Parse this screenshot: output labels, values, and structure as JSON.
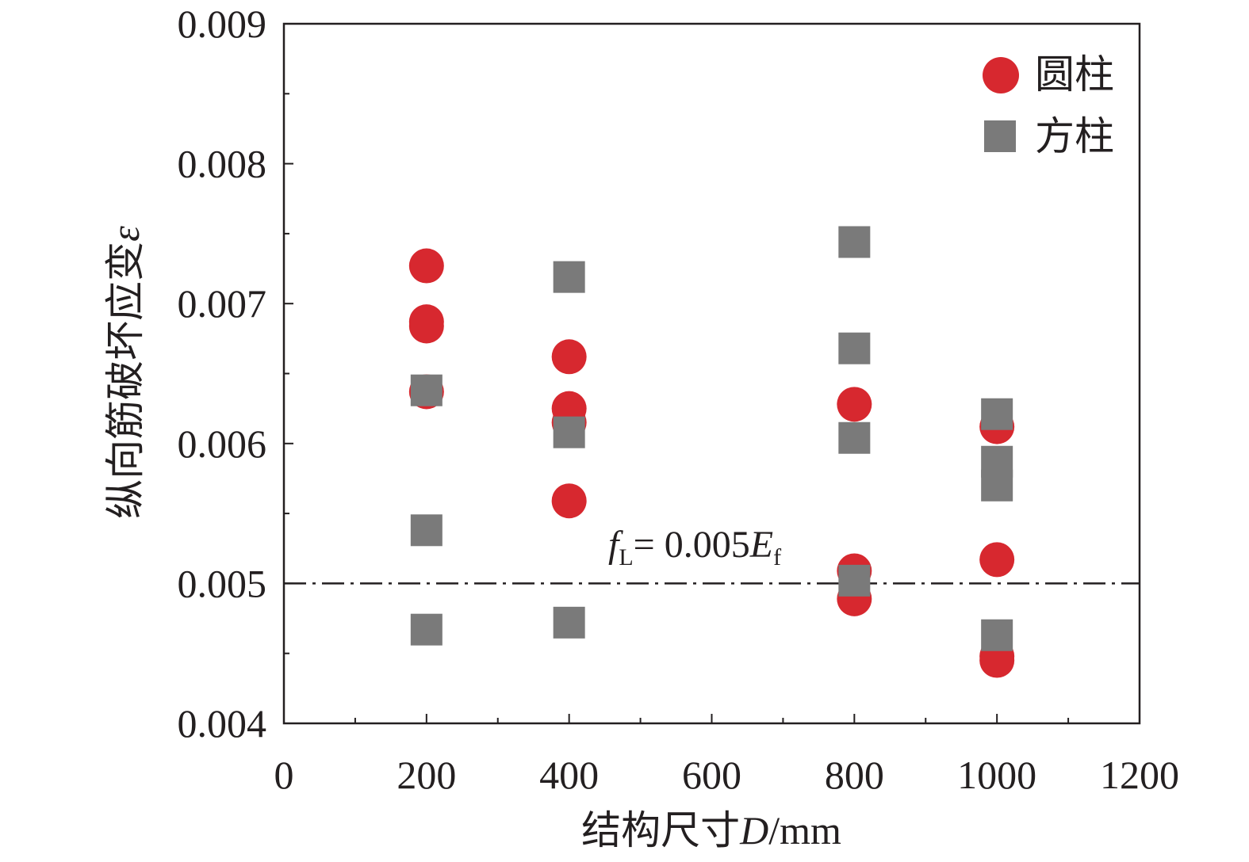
{
  "chart_data": {
    "type": "scatter",
    "xlabel": {
      "prefix": "结构尺寸",
      "var": "D",
      "suffix": "/mm"
    },
    "ylabel": {
      "text": "纵向筋破坏应变",
      "var": "ε"
    },
    "xlim": [
      0,
      1200
    ],
    "ylim": [
      0.004,
      0.009
    ],
    "x_ticks": [
      "0",
      "200",
      "400",
      "600",
      "800",
      "1000",
      "1200"
    ],
    "y_ticks": [
      "0.004",
      "0.005",
      "0.006",
      "0.007",
      "0.008",
      "0.009"
    ],
    "grid": false,
    "legend_position": "top-right",
    "series": [
      {
        "name": "圆柱",
        "marker": "circle",
        "color": "#d7282f",
        "points": [
          {
            "x": 200,
            "y": 0.00727
          },
          {
            "x": 200,
            "y": 0.00687
          },
          {
            "x": 200,
            "y": 0.00684
          },
          {
            "x": 200,
            "y": 0.00637
          },
          {
            "x": 400,
            "y": 0.00662
          },
          {
            "x": 400,
            "y": 0.00625
          },
          {
            "x": 400,
            "y": 0.00615
          },
          {
            "x": 400,
            "y": 0.00559
          },
          {
            "x": 800,
            "y": 0.00628
          },
          {
            "x": 800,
            "y": 0.00509
          },
          {
            "x": 800,
            "y": 0.00489
          },
          {
            "x": 1000,
            "y": 0.00612
          },
          {
            "x": 1000,
            "y": 0.00517
          },
          {
            "x": 1000,
            "y": 0.00448
          },
          {
            "x": 1000,
            "y": 0.00445
          }
        ]
      },
      {
        "name": "方柱",
        "marker": "square",
        "color": "#7a7a7a",
        "points": [
          {
            "x": 200,
            "y": 0.00638
          },
          {
            "x": 200,
            "y": 0.00538
          },
          {
            "x": 200,
            "y": 0.00467
          },
          {
            "x": 400,
            "y": 0.00719
          },
          {
            "x": 400,
            "y": 0.00608
          },
          {
            "x": 400,
            "y": 0.00472
          },
          {
            "x": 800,
            "y": 0.00744
          },
          {
            "x": 800,
            "y": 0.00668
          },
          {
            "x": 800,
            "y": 0.00604
          },
          {
            "x": 800,
            "y": 0.00502
          },
          {
            "x": 1000,
            "y": 0.00621
          },
          {
            "x": 1000,
            "y": 0.00587
          },
          {
            "x": 1000,
            "y": 0.0057
          },
          {
            "x": 1000,
            "y": 0.00463
          }
        ]
      }
    ],
    "reference_line": {
      "y": 0.005,
      "style": "dash-dot",
      "label": {
        "f": "f",
        "f_sub": "L",
        "mid": "= 0.005",
        "E": "E",
        "E_sub": "f"
      }
    }
  }
}
